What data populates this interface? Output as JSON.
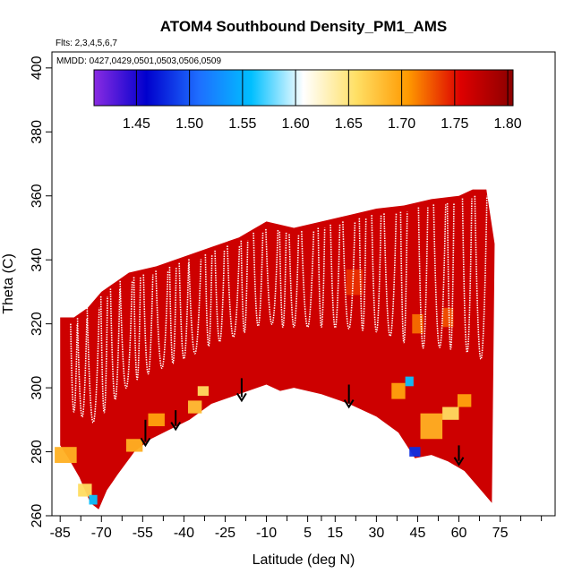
{
  "chart_data": {
    "type": "heatmap",
    "title": "ATOM4 Southbound Density_PM1_AMS",
    "flights_note": "Flts: 2,3,4,5,6,7",
    "dates_note": "MMDD: 0427,0429,0501,0503,0506,0509",
    "xlabel": "Latitude (deg N)",
    "ylabel": "Theta (C)",
    "xlim": [
      -88,
      95
    ],
    "ylim": [
      260,
      405
    ],
    "x_ticks": [
      -85,
      -70,
      -55,
      -40,
      -25,
      -10,
      5,
      15,
      30,
      45,
      60,
      75
    ],
    "y_ticks": [
      260,
      280,
      300,
      320,
      340,
      360,
      380,
      400
    ],
    "colorbar": {
      "ticks": [
        "1.45",
        "1.50",
        "1.55",
        "1.60",
        "1.65",
        "1.70",
        "1.75",
        "1.80"
      ],
      "range": [
        1.41,
        1.805
      ],
      "colors": [
        "#8a2be2",
        "#0000cd",
        "#1e6eff",
        "#00bfff",
        "#ffffff",
        "#ffe066",
        "#ff9900",
        "#dd0000",
        "#8b0000"
      ]
    },
    "domain_top": [
      [
        -85,
        322
      ],
      [
        -80,
        322
      ],
      [
        -75,
        325
      ],
      [
        -70,
        330
      ],
      [
        -65,
        333
      ],
      [
        -60,
        336
      ],
      [
        -50,
        338
      ],
      [
        -40,
        341
      ],
      [
        -30,
        344
      ],
      [
        -20,
        347
      ],
      [
        -10,
        352
      ],
      [
        0,
        350
      ],
      [
        10,
        352
      ],
      [
        20,
        354
      ],
      [
        30,
        356
      ],
      [
        40,
        357
      ],
      [
        50,
        359
      ],
      [
        60,
        360
      ],
      [
        65,
        362
      ],
      [
        70,
        362
      ],
      [
        73,
        345
      ]
    ],
    "domain_bottom": [
      [
        -85,
        282
      ],
      [
        -82,
        278
      ],
      [
        -78,
        272
      ],
      [
        -74,
        264
      ],
      [
        -71,
        262
      ],
      [
        -68,
        268
      ],
      [
        -64,
        273
      ],
      [
        -58,
        280
      ],
      [
        -52,
        284
      ],
      [
        -45,
        287
      ],
      [
        -38,
        290
      ],
      [
        -30,
        295
      ],
      [
        -20,
        298
      ],
      [
        -10,
        301
      ],
      [
        -5,
        299
      ],
      [
        0,
        300
      ],
      [
        10,
        298
      ],
      [
        20,
        295
      ],
      [
        30,
        291
      ],
      [
        38,
        286
      ],
      [
        44,
        278
      ],
      [
        50,
        279
      ],
      [
        56,
        277
      ],
      [
        62,
        274
      ],
      [
        68,
        268
      ],
      [
        72,
        264
      ]
    ],
    "value_patches": [
      {
        "lat": -83,
        "theta": 279,
        "dlat": 8,
        "dtheta": 5,
        "value": 1.69
      },
      {
        "lat": -76,
        "theta": 268,
        "dlat": 5,
        "dtheta": 4,
        "value": 1.66
      },
      {
        "lat": -73,
        "theta": 265,
        "dlat": 3,
        "dtheta": 3,
        "value": 1.56
      },
      {
        "lat": -58,
        "theta": 282,
        "dlat": 6,
        "dtheta": 4,
        "value": 1.69
      },
      {
        "lat": -50,
        "theta": 290,
        "dlat": 6,
        "dtheta": 4,
        "value": 1.7
      },
      {
        "lat": -36,
        "theta": 294,
        "dlat": 5,
        "dtheta": 4,
        "value": 1.68
      },
      {
        "lat": -33,
        "theta": 299,
        "dlat": 4,
        "dtheta": 3,
        "value": 1.66
      },
      {
        "lat": 38,
        "theta": 299,
        "dlat": 5,
        "dtheta": 5,
        "value": 1.7
      },
      {
        "lat": 42,
        "theta": 302,
        "dlat": 3,
        "dtheta": 3,
        "value": 1.56
      },
      {
        "lat": 44,
        "theta": 280,
        "dlat": 4,
        "dtheta": 3,
        "value": 1.48
      },
      {
        "lat": 50,
        "theta": 288,
        "dlat": 8,
        "dtheta": 8,
        "value": 1.69
      },
      {
        "lat": 57,
        "theta": 292,
        "dlat": 6,
        "dtheta": 4,
        "value": 1.66
      },
      {
        "lat": 62,
        "theta": 296,
        "dlat": 5,
        "dtheta": 4,
        "value": 1.7
      },
      {
        "lat": 45,
        "theta": 320,
        "dlat": 4,
        "dtheta": 6,
        "value": 1.72
      },
      {
        "lat": 56,
        "theta": 322,
        "dlat": 4,
        "dtheta": 6,
        "value": 1.73
      },
      {
        "lat": 22,
        "theta": 333,
        "dlat": 6,
        "dtheta": 8,
        "value": 1.74
      }
    ],
    "profile_lats": [
      -80,
      -77,
      -73,
      -69,
      -65,
      -61,
      -57,
      -53,
      -48,
      -44,
      -40,
      -36,
      -31,
      -27,
      -22,
      -18,
      -13,
      -8,
      -4,
      0,
      5,
      10,
      15,
      20,
      25,
      30,
      35,
      40,
      47,
      53,
      57,
      63,
      68
    ],
    "arrows": [
      {
        "lat": -54,
        "theta_top": 290,
        "theta_tip": 282
      },
      {
        "lat": -43,
        "theta_top": 293,
        "theta_tip": 287
      },
      {
        "lat": -19,
        "theta_top": 303,
        "theta_tip": 296
      },
      {
        "lat": 20,
        "theta_top": 301,
        "theta_tip": 294
      },
      {
        "lat": 60,
        "theta_top": 282,
        "theta_tip": 276
      }
    ]
  }
}
